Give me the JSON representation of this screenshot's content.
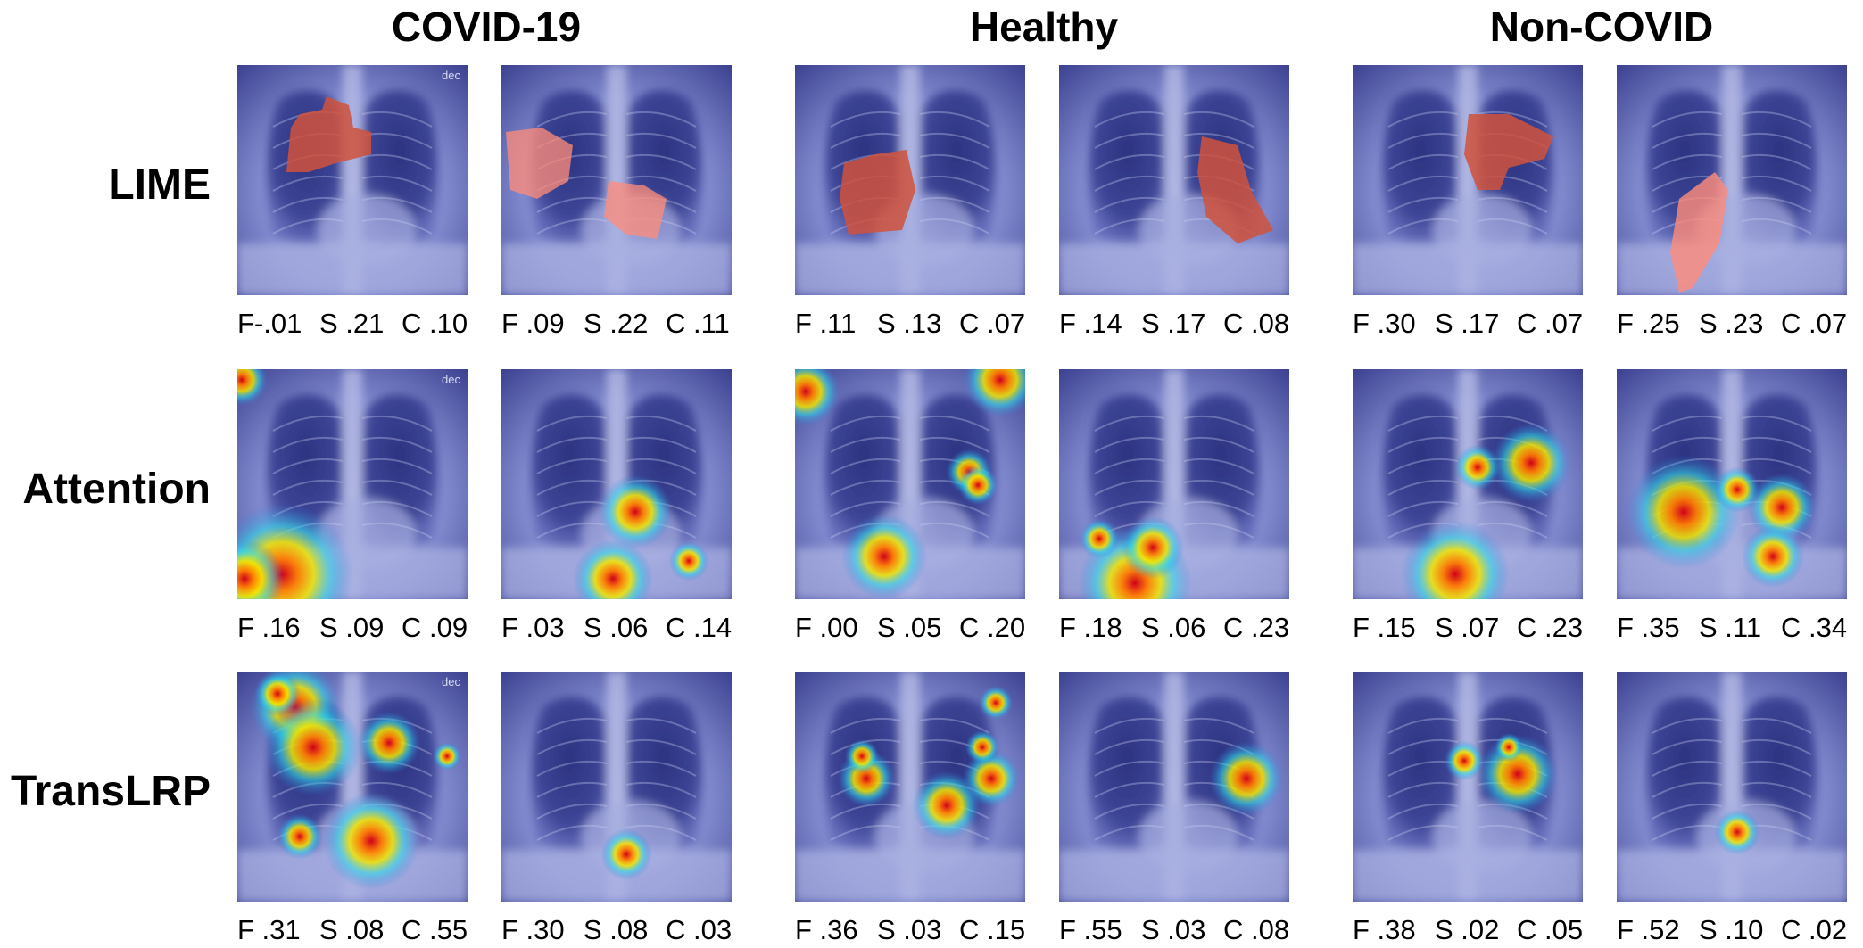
{
  "figure": {
    "columns": [
      "COVID-19",
      "Healthy",
      "Non-COVID"
    ],
    "rows": [
      {
        "method": "LIME",
        "panels": [
          {
            "label": "dec",
            "F": "F-.01",
            "S": "S .21",
            "C": "C .10"
          },
          {
            "label": "",
            "F": "F .09",
            "S": "S .22",
            "C": "C .11"
          },
          {
            "label": "",
            "F": "F .11",
            "S": "S .13",
            "C": "C .07"
          },
          {
            "label": "",
            "F": "F .14",
            "S": "S .17",
            "C": "C .08"
          },
          {
            "label": "",
            "F": "F .30",
            "S": "S .17",
            "C": "C .07"
          },
          {
            "label": "",
            "F": "F .25",
            "S": "S .23",
            "C": "C .07"
          }
        ]
      },
      {
        "method": "Attention",
        "panels": [
          {
            "label": "dec",
            "F": "F .16",
            "S": "S .09",
            "C": "C .09"
          },
          {
            "label": "",
            "F": "F .03",
            "S": "S .06",
            "C": "C .14"
          },
          {
            "label": "",
            "F": "F .00",
            "S": "S .05",
            "C": "C .20"
          },
          {
            "label": "",
            "F": "F .18",
            "S": "S .06",
            "C": "C .23"
          },
          {
            "label": "",
            "F": "F .15",
            "S": "S .07",
            "C": "C .23"
          },
          {
            "label": "",
            "F": "F .35",
            "S": "S .11",
            "C": "C .34"
          }
        ]
      },
      {
        "method": "TransLRP",
        "panels": [
          {
            "label": "dec",
            "F": "F .31",
            "S": "S .08",
            "C": "C .55"
          },
          {
            "label": "",
            "F": "F .30",
            "S": "S .08",
            "C": "C .03"
          },
          {
            "label": "",
            "F": "F .36",
            "S": "S .03",
            "C": "C .15"
          },
          {
            "label": "",
            "F": "F .55",
            "S": "S .03",
            "C": "C .08"
          },
          {
            "label": "",
            "F": "F .38",
            "S": "S .02",
            "C": "C .05"
          },
          {
            "label": "",
            "F": "F .52",
            "S": "S .10",
            "C": "C .02"
          }
        ]
      }
    ]
  }
}
